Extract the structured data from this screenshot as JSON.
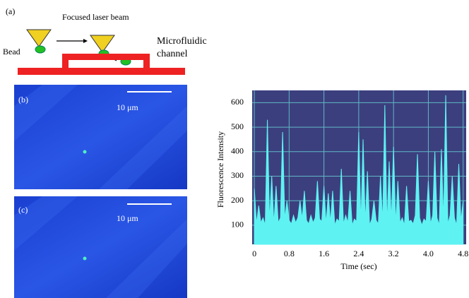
{
  "figure": {
    "panel_labels": [
      "(a)",
      "(b)",
      "(c)"
    ],
    "schematic": {
      "beam_label": "Focused laser beam",
      "bead_label": "Bead",
      "channel_label": "Microfluidic channel"
    },
    "scale_bar_labels": [
      "10 μm",
      "10 μm"
    ]
  },
  "chart_data": {
    "type": "area",
    "y_label": "Fluorescence Intensity",
    "x_label": "Time (sec)",
    "color": "#5ef2f2",
    "background": "#3c3f7e",
    "grid": true,
    "grid_color": "#5fb8c4",
    "xlim": [
      -0.05,
      4.87
    ],
    "ylim": [
      22,
      650
    ],
    "xticks": [
      0,
      0.8,
      1.6,
      2.4,
      3.2,
      {
        "value": 4,
        "label": "4.0"
      },
      4.8
    ],
    "yticks": [
      100,
      200,
      300,
      400,
      500,
      600
    ],
    "x": [
      0,
      0.05,
      0.1,
      0.15,
      0.2,
      0.25,
      0.3,
      0.35,
      0.4,
      0.45,
      0.5,
      0.55,
      0.6,
      0.65,
      0.7,
      0.75,
      0.8,
      0.85,
      0.9,
      0.95,
      1,
      1.05,
      1.1,
      1.15,
      1.2,
      1.25,
      1.3,
      1.35,
      1.4,
      1.45,
      1.5,
      1.55,
      1.6,
      1.65,
      1.7,
      1.75,
      1.8,
      1.85,
      1.9,
      1.95,
      2,
      2.05,
      2.1,
      2.15,
      2.2,
      2.25,
      2.3,
      2.35,
      2.4,
      2.45,
      2.5,
      2.55,
      2.6,
      2.65,
      2.7,
      2.75,
      2.8,
      2.85,
      2.9,
      2.95,
      3,
      3.05,
      3.1,
      3.15,
      3.2,
      3.25,
      3.3,
      3.35,
      3.4,
      3.45,
      3.5,
      3.55,
      3.6,
      3.65,
      3.7,
      3.75,
      3.8,
      3.85,
      3.9,
      3.95,
      4,
      4.05,
      4.1,
      4.15,
      4.2,
      4.25,
      4.3,
      4.35,
      4.4,
      4.45,
      4.5,
      4.55,
      4.6,
      4.65,
      4.7,
      4.75,
      4.8
    ],
    "values": [
      250,
      105,
      180,
      110,
      130,
      100,
      530,
      115,
      300,
      105,
      260,
      110,
      130,
      480,
      125,
      200,
      120,
      105,
      140,
      110,
      130,
      200,
      125,
      240,
      120,
      105,
      140,
      110,
      130,
      280,
      125,
      115,
      260,
      105,
      230,
      110,
      240,
      100,
      125,
      115,
      330,
      105,
      140,
      110,
      240,
      100,
      125,
      115,
      480,
      105,
      450,
      110,
      320,
      100,
      125,
      200,
      120,
      105,
      300,
      110,
      590,
      100,
      360,
      115,
      420,
      105,
      280,
      110,
      130,
      100,
      260,
      115,
      120,
      105,
      140,
      390,
      130,
      100,
      125,
      115,
      280,
      105,
      140,
      400,
      130,
      100,
      410,
      115,
      630,
      105,
      140,
      300,
      130,
      100,
      350,
      115,
      200
    ]
  }
}
